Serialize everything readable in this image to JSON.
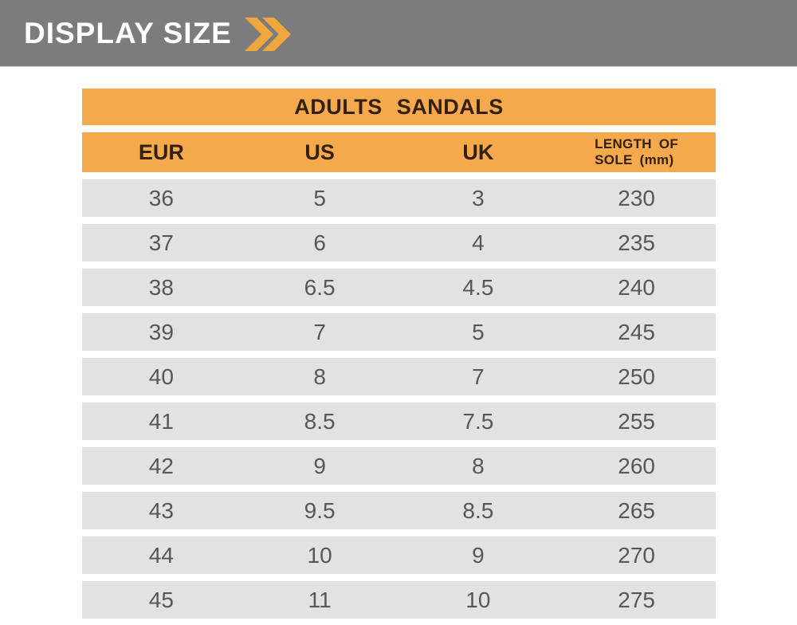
{
  "banner": {
    "title": "DISPLAY SIZE",
    "chevron_icon": "double-chevron-right"
  },
  "table": {
    "title": "ADULTS SANDALS",
    "header": {
      "eur": "EUR",
      "us": "US",
      "uk": "UK",
      "length_line1": "LENGTH OF",
      "length_line2": "SOLE  (mm)"
    }
  },
  "chart_data": {
    "type": "table",
    "title": "ADULTS SANDALS",
    "columns": [
      "EUR",
      "US",
      "UK",
      "LENGTH OF SOLE (mm)"
    ],
    "rows": [
      [
        "36",
        "5",
        "3",
        "230"
      ],
      [
        "37",
        "6",
        "4",
        "235"
      ],
      [
        "38",
        "6.5",
        "4.5",
        "240"
      ],
      [
        "39",
        "7",
        "5",
        "245"
      ],
      [
        "40",
        "8",
        "7",
        "250"
      ],
      [
        "41",
        "8.5",
        "7.5",
        "255"
      ],
      [
        "42",
        "9",
        "8",
        "260"
      ],
      [
        "43",
        "9.5",
        "8.5",
        "265"
      ],
      [
        "44",
        "10",
        "9",
        "270"
      ],
      [
        "45",
        "11",
        "10",
        "275"
      ]
    ]
  },
  "colors": {
    "banner_bg": "#7c7c7c",
    "banner_text": "#ffffff",
    "accent_orange": "#f4a94c",
    "chevron_orange": "#efa73e",
    "header_text": "#33200d",
    "row_bg": "#e2e2e2",
    "row_text": "#57575a"
  }
}
